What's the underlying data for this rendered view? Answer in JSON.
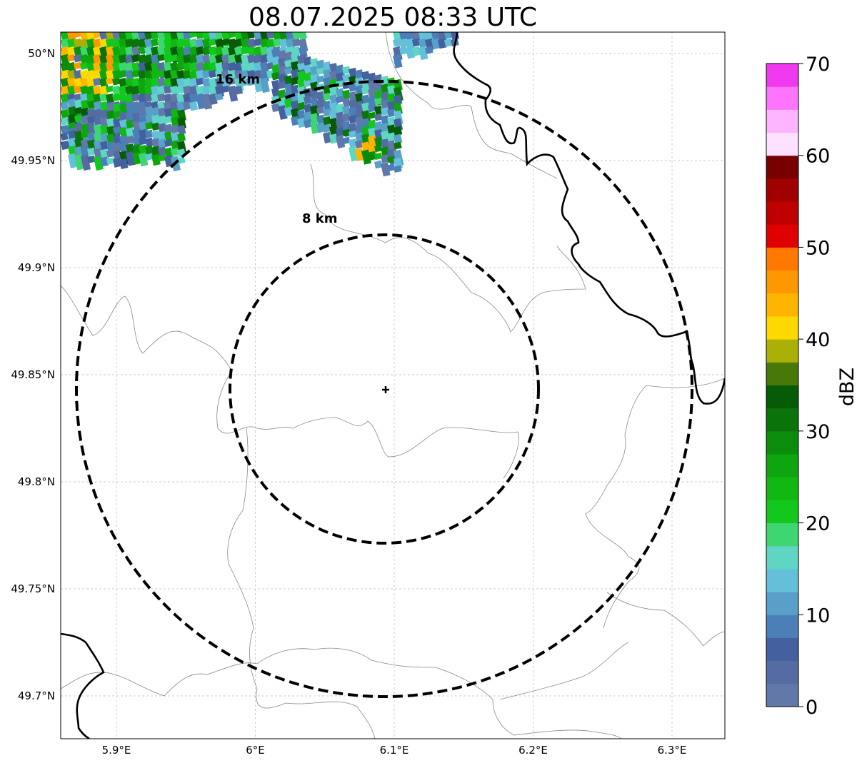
{
  "title": "08.07.2025 08:33 UTC",
  "map": {
    "lat_ticks": [
      {
        "value": 50.0,
        "label": "50°N"
      },
      {
        "value": 49.95,
        "label": "49.95°N"
      },
      {
        "value": 49.9,
        "label": "49.9°N"
      },
      {
        "value": 49.85,
        "label": "49.85°N"
      },
      {
        "value": 49.8,
        "label": "49.8°N"
      },
      {
        "value": 49.75,
        "label": "49.75°N"
      },
      {
        "value": 49.7,
        "label": "49.7°N"
      }
    ],
    "lon_ticks": [
      {
        "value": 5.9,
        "label": "5.9°E"
      },
      {
        "value": 6.0,
        "label": "6°E"
      },
      {
        "value": 6.1,
        "label": "6.1°E"
      },
      {
        "value": 6.2,
        "label": "6.2°E"
      },
      {
        "value": 6.3,
        "label": "6.3°E"
      }
    ],
    "rings": [
      {
        "label": "8 km"
      },
      {
        "label": "16 km"
      }
    ],
    "center_marker": "plus-icon",
    "gridlines": true,
    "ring_style": "dashed"
  },
  "colorbar": {
    "label": "dBZ",
    "ticks": [
      "0",
      "10",
      "20",
      "30",
      "40",
      "50",
      "60",
      "70"
    ],
    "colors": [
      "#6178a8",
      "#546ca2",
      "#44609f",
      "#4a7fb8",
      "#58a0c8",
      "#63c0d8",
      "#5fd6c4",
      "#3dd670",
      "#12c81c",
      "#12b812",
      "#0ea60e",
      "#0c8c0c",
      "#0a740a",
      "#065c06",
      "#487808",
      "#aab006",
      "#ffd800",
      "#ffb400",
      "#ff9800",
      "#ff7800",
      "#e00000",
      "#c00000",
      "#a00000",
      "#780000",
      "#ffe0ff",
      "#ffb4ff",
      "#ff74ff",
      "#f038f0"
    ]
  }
}
